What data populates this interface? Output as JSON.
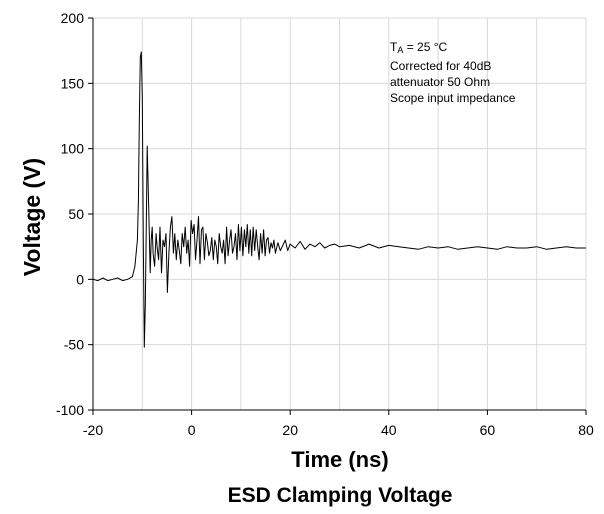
{
  "chart_data": {
    "type": "line",
    "title": "ESD Clamping Voltage",
    "xlabel": "Time  (ns)",
    "ylabel": "Voltage (V)",
    "xlim": [
      -20,
      80
    ],
    "ylim": [
      -100,
      200
    ],
    "xticks": [
      -20,
      0,
      20,
      40,
      60,
      80
    ],
    "yticks": [
      -100,
      -50,
      0,
      50,
      100,
      150,
      200
    ],
    "x_tick_labels": [
      "-20",
      "0",
      "20",
      "40",
      "60",
      "80"
    ],
    "y_tick_labels": [
      "-100",
      "-50",
      "0",
      "50",
      "100",
      "150",
      "200"
    ],
    "x_minor_gridlines": [
      -10,
      10,
      30,
      50,
      70
    ],
    "grid": true,
    "annotation": {
      "line1_main": "T",
      "line1_sub": "A",
      "line1_rest": " = 25 °C",
      "line2": "Corrected for 40dB",
      "line3": "attenuator  50 Ohm",
      "line4": "Scope input impedance"
    },
    "line_color": "#000000",
    "series": [
      {
        "x": [
          -20,
          -19,
          -18,
          -17,
          -16,
          -15,
          -14,
          -13,
          -12,
          -11.5,
          -11,
          -10.8,
          -10.6,
          -10.4,
          -10.2,
          -10,
          -9.8,
          -9.6,
          -9.4,
          -9.2,
          -9,
          -8.7,
          -8.4,
          -8.2,
          -8,
          -7.8,
          -7.5,
          -7.2,
          -7,
          -6.7,
          -6.4,
          -6.1,
          -5.8,
          -5.5,
          -5.2,
          -4.9,
          -4.6,
          -4.3,
          -4,
          -3.7,
          -3.4,
          -3.1,
          -2.8,
          -2.5,
          -2.2,
          -1.9,
          -1.6,
          -1.3,
          -1,
          -0.7,
          -0.4,
          -0.1,
          0.2,
          0.5,
          0.8,
          1.1,
          1.4,
          1.7,
          2,
          2.3,
          2.6,
          2.9,
          3.2,
          3.5,
          3.8,
          4.1,
          4.4,
          4.7,
          5,
          5.3,
          5.6,
          5.9,
          6.2,
          6.5,
          6.8,
          7.1,
          7.4,
          7.7,
          8,
          8.3,
          8.6,
          8.9,
          9.2,
          9.5,
          9.8,
          10.1,
          10.4,
          10.7,
          11,
          11.3,
          11.6,
          11.9,
          12.2,
          12.5,
          12.8,
          13.1,
          13.4,
          13.7,
          14,
          14.3,
          14.6,
          14.9,
          15.2,
          15.5,
          15.8,
          16.1,
          16.4,
          16.7,
          17,
          17.5,
          18,
          18.5,
          19,
          19.5,
          20,
          21,
          22,
          23,
          24,
          25,
          26,
          27,
          28,
          29,
          30,
          32,
          34,
          36,
          38,
          40,
          42,
          44,
          46,
          48,
          50,
          52,
          54,
          56,
          58,
          60,
          62,
          64,
          66,
          68,
          70,
          72,
          74,
          76,
          78,
          80
        ],
        "y": [
          0,
          -1,
          1,
          -1,
          0,
          1,
          -1,
          0,
          2,
          10,
          30,
          60,
          120,
          170,
          174,
          140,
          30,
          -52,
          -20,
          35,
          102,
          55,
          5,
          30,
          40,
          20,
          10,
          35,
          25,
          15,
          40,
          5,
          30,
          25,
          35,
          -10,
          20,
          40,
          48,
          20,
          35,
          15,
          30,
          22,
          12,
          35,
          25,
          40,
          20,
          30,
          10,
          45,
          35,
          42,
          15,
          30,
          48,
          12,
          38,
          40,
          15,
          35,
          28,
          18,
          22,
          32,
          15,
          30,
          25,
          12,
          35,
          25,
          20,
          30,
          12,
          40,
          18,
          30,
          38,
          20,
          25,
          35,
          15,
          42,
          22,
          40,
          18,
          38,
          25,
          42,
          20,
          38,
          18,
          40,
          22,
          38,
          25,
          15,
          35,
          20,
          38,
          18,
          30,
          32,
          20,
          28,
          24,
          30,
          20,
          28,
          22,
          26,
          30,
          22,
          27,
          24,
          29,
          23,
          27,
          25,
          28,
          24,
          26,
          27,
          25,
          26,
          24,
          27,
          24,
          26,
          25,
          24,
          23,
          25,
          24,
          25,
          23,
          24,
          25,
          24,
          23,
          25,
          24,
          24,
          25,
          23,
          24,
          25,
          24,
          24
        ]
      }
    ]
  }
}
